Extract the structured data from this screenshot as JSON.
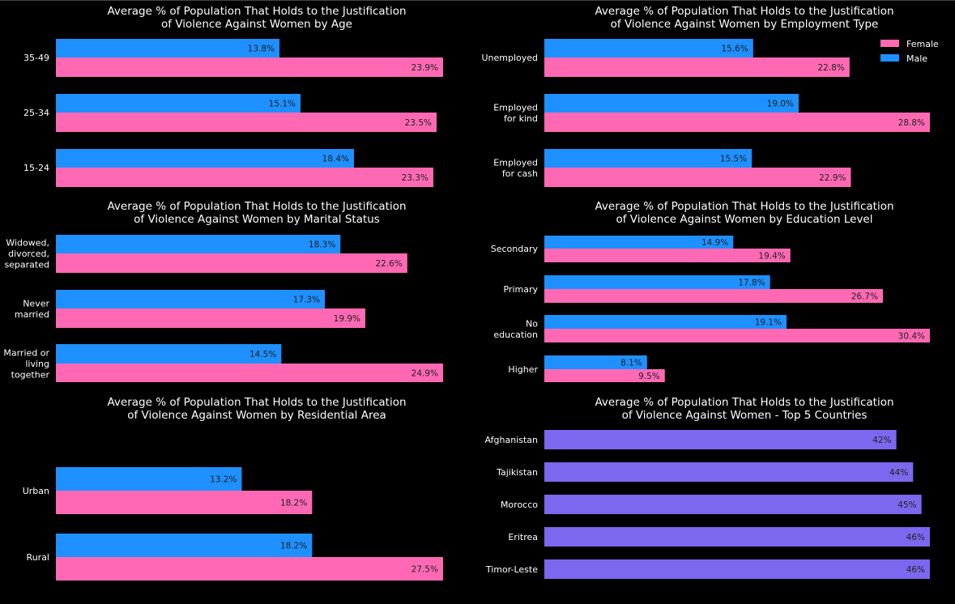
{
  "colors": {
    "female": "#ff69b4",
    "male": "#1e90ff",
    "country": "#7b68ee",
    "background": "#000000"
  },
  "legend": {
    "female": "Female",
    "male": "Male"
  },
  "chart_data": [
    {
      "id": "age",
      "type": "bar",
      "orientation": "horizontal",
      "title": [
        "Average % of Population That Holds to the Justification",
        "of Violence Against Women by Age"
      ],
      "categories": [
        [
          "35-49"
        ],
        [
          "25-34"
        ],
        [
          "15-24"
        ]
      ],
      "series": [
        {
          "name": "Male",
          "values": [
            13.8,
            15.1,
            18.4
          ]
        },
        {
          "name": "Female",
          "values": [
            23.9,
            23.5,
            23.3
          ]
        }
      ],
      "labels": {
        "Male": [
          "13.8%",
          "15.1%",
          "18.4%"
        ],
        "Female": [
          "23.9%",
          "23.5%",
          "23.3%"
        ]
      },
      "xlim": [
        0,
        23.9
      ],
      "grid": false
    },
    {
      "id": "employment",
      "type": "bar",
      "orientation": "horizontal",
      "title": [
        "Average % of Population That Holds to the Justification",
        "of Violence Against Women by Employment Type"
      ],
      "categories": [
        [
          "Unemployed"
        ],
        [
          "Employed",
          "for kind"
        ],
        [
          "Employed",
          "for cash"
        ]
      ],
      "series": [
        {
          "name": "Male",
          "values": [
            15.6,
            19.0,
            15.5
          ]
        },
        {
          "name": "Female",
          "values": [
            22.8,
            28.8,
            22.9
          ]
        }
      ],
      "labels": {
        "Male": [
          "15.6%",
          "19.0%",
          "15.5%"
        ],
        "Female": [
          "22.8%",
          "28.8%",
          "22.9%"
        ]
      },
      "xlim": [
        0,
        28.8
      ],
      "legend_position": "top-right",
      "grid": false
    },
    {
      "id": "marital",
      "type": "bar",
      "orientation": "horizontal",
      "title": [
        "Average % of Population That Holds to the Justification",
        "of Violence Against Women by Marital Status"
      ],
      "categories": [
        [
          "Widowed,",
          "divorced,",
          "separated"
        ],
        [
          "Never",
          "married"
        ],
        [
          "Married or",
          "living",
          "together"
        ]
      ],
      "series": [
        {
          "name": "Male",
          "values": [
            18.3,
            17.3,
            14.5
          ]
        },
        {
          "name": "Female",
          "values": [
            22.6,
            19.9,
            24.9
          ]
        }
      ],
      "labels": {
        "Male": [
          "18.3%",
          "17.3%",
          "14.5%"
        ],
        "Female": [
          "22.6%",
          "19.9%",
          "24.9%"
        ]
      },
      "xlim": [
        0,
        24.9
      ],
      "grid": false
    },
    {
      "id": "education",
      "type": "bar",
      "orientation": "horizontal",
      "title": [
        "Average % of Population That Holds to the Justification",
        "of Violence Against Women by Education Level"
      ],
      "categories": [
        [
          "Secondary"
        ],
        [
          "Primary"
        ],
        [
          "No",
          "education"
        ],
        [
          "Higher"
        ]
      ],
      "series": [
        {
          "name": "Male",
          "values": [
            14.9,
            17.8,
            19.1,
            8.1
          ]
        },
        {
          "name": "Female",
          "values": [
            19.4,
            26.7,
            30.4,
            9.5
          ]
        }
      ],
      "labels": {
        "Male": [
          "14.9%",
          "17.8%",
          "19.1%",
          "8.1%"
        ],
        "Female": [
          "19.4%",
          "26.7%",
          "30.4%",
          "9.5%"
        ]
      },
      "xlim": [
        0,
        30.4
      ],
      "grid": false
    },
    {
      "id": "residence",
      "type": "bar",
      "orientation": "horizontal",
      "title": [
        "Average % of Population That Holds to the Justification",
        "of Violence Against Women by Residential Area"
      ],
      "categories": [
        [
          "Urban"
        ],
        [
          "Rural"
        ]
      ],
      "series": [
        {
          "name": "Male",
          "values": [
            13.2,
            18.2
          ]
        },
        {
          "name": "Female",
          "values": [
            18.2,
            27.5
          ]
        }
      ],
      "labels": {
        "Male": [
          "13.2%",
          "18.2%"
        ],
        "Female": [
          "18.2%",
          "27.5%"
        ]
      },
      "xlim": [
        0,
        27.5
      ],
      "grid": false
    },
    {
      "id": "countries",
      "type": "bar",
      "orientation": "horizontal",
      "title": [
        "Average % of Population That Holds to the Justification",
        "of Violence Against Women - Top 5 Countries"
      ],
      "categories": [
        [
          "Afghanistan"
        ],
        [
          "Tajikistan"
        ],
        [
          "Morocco"
        ],
        [
          "Eritrea"
        ],
        [
          "Timor-Leste"
        ]
      ],
      "series": [
        {
          "name": "",
          "values": [
            42,
            44,
            45,
            46,
            46
          ]
        }
      ],
      "labels": {
        "": [
          "42%",
          "44%",
          "45%",
          "46%",
          "46%"
        ]
      },
      "xlim": [
        0,
        46
      ],
      "grid": false
    }
  ]
}
